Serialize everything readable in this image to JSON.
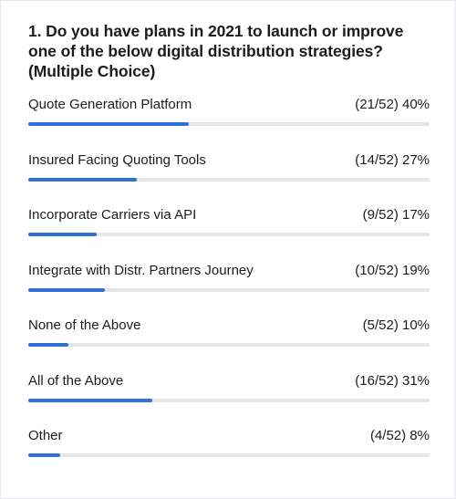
{
  "poll": {
    "question": "1. Do you have plans in 2021 to launch or improve one of the below digital distribution strategies?(Multiple Choice)",
    "accent_color": "#2f6fd6",
    "track_color": "#e5e5ea",
    "options": [
      {
        "label": "Quote Generation Platform",
        "stat": "(21/52) 40%",
        "percent": 40
      },
      {
        "label": "Insured Facing Quoting Tools",
        "stat": "(14/52) 27%",
        "percent": 27
      },
      {
        "label": "Incorporate Carriers via API",
        "stat": "(9/52) 17%",
        "percent": 17
      },
      {
        "label": "Integrate with Distr. Partners Journey",
        "stat": "(10/52) 19%",
        "percent": 19
      },
      {
        "label": "None of the Above",
        "stat": "(5/52) 10%",
        "percent": 10
      },
      {
        "label": "All of the Above",
        "stat": "(16/52) 31%",
        "percent": 31
      },
      {
        "label": "Other",
        "stat": "(4/52) 8%",
        "percent": 8
      }
    ]
  }
}
